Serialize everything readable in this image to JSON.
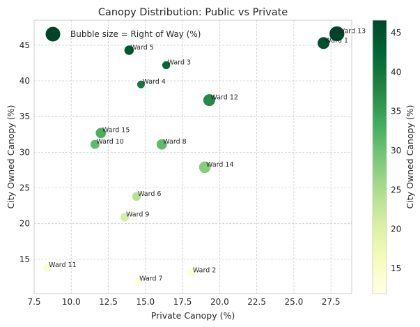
{
  "chart_data": {
    "type": "scatter",
    "title": "Canopy Distribution: Public vs Private",
    "xlabel": "Private Canopy (%)",
    "ylabel": "City Owned Canopy (%)",
    "xlim": [
      7.5,
      28.9
    ],
    "ylim": [
      10.2,
      48.5
    ],
    "x_ticks": [
      7.5,
      10.0,
      12.5,
      15.0,
      17.5,
      20.0,
      22.5,
      25.0,
      27.5
    ],
    "y_ticks": [
      15,
      20,
      25,
      30,
      35,
      40,
      45
    ],
    "grid": true,
    "legend": {
      "label": "Bubble size = Right of Way (%)",
      "placement": "top-left"
    },
    "size_variable": "Right of Way (%)",
    "color_variable": "City Owned Canopy (%)",
    "colormap": "YlGn",
    "colorbar": {
      "label": "City Owned Canopy (%)",
      "range": [
        11.8,
        46.6
      ],
      "ticks": [
        15,
        20,
        25,
        30,
        35,
        40,
        45
      ]
    },
    "points": [
      {
        "label": "Ward 1",
        "x": 27.0,
        "y": 45.3,
        "size": 34
      },
      {
        "label": "Ward 2",
        "x": 18.1,
        "y": 13.1,
        "size": 18
      },
      {
        "label": "Ward 3",
        "x": 16.4,
        "y": 42.2,
        "size": 16
      },
      {
        "label": "Ward 4",
        "x": 14.7,
        "y": 39.5,
        "size": 15
      },
      {
        "label": "Ward 5",
        "x": 13.9,
        "y": 44.3,
        "size": 22
      },
      {
        "label": "Ward 6",
        "x": 14.4,
        "y": 23.8,
        "size": 19
      },
      {
        "label": "Ward 7",
        "x": 14.5,
        "y": 11.9,
        "size": 16
      },
      {
        "label": "Ward 8",
        "x": 16.1,
        "y": 31.1,
        "size": 26
      },
      {
        "label": "Ward 9",
        "x": 13.6,
        "y": 20.9,
        "size": 18
      },
      {
        "label": "Ward 10",
        "x": 11.6,
        "y": 31.1,
        "size": 20
      },
      {
        "label": "Ward 11",
        "x": 8.4,
        "y": 13.8,
        "size": 18
      },
      {
        "label": "Ward 12",
        "x": 19.3,
        "y": 37.3,
        "size": 34
      },
      {
        "label": "Ward 13",
        "x": 27.9,
        "y": 46.6,
        "size": 52
      },
      {
        "label": "Ward 14",
        "x": 19.0,
        "y": 27.9,
        "size": 32
      },
      {
        "label": "Ward 15",
        "x": 12.0,
        "y": 32.7,
        "size": 26
      }
    ],
    "colors": {
      "background": "#ffffff",
      "grid": "#cccccc",
      "axes": "#cccccc",
      "marker_edge": "#ffffff"
    }
  }
}
